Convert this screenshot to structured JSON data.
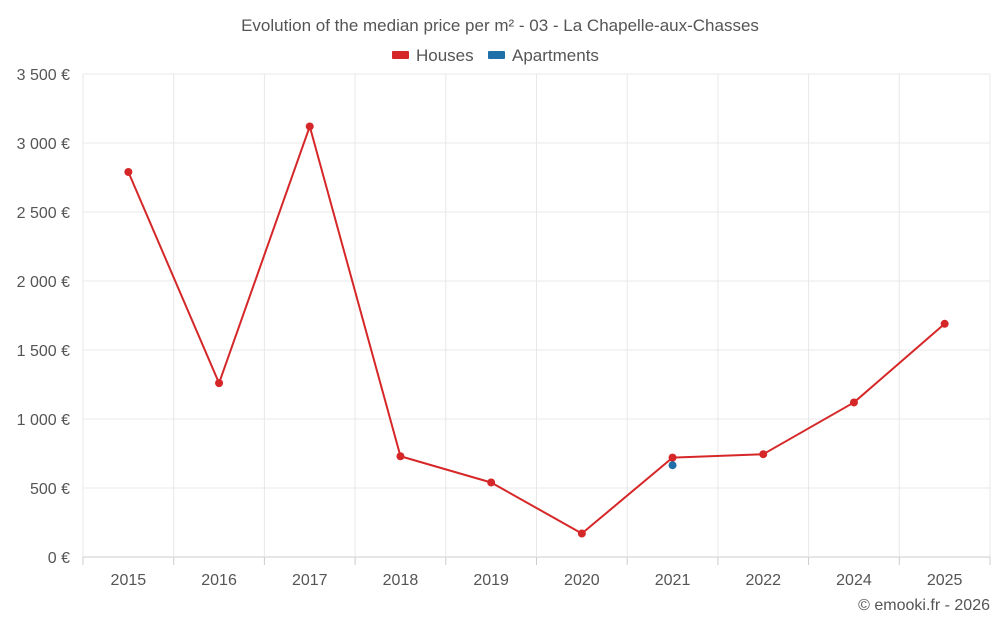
{
  "chart_data": {
    "type": "line",
    "title": "Evolution of the median price per m² - 03 - La Chapelle-aux-Chasses",
    "categories": [
      "2015",
      "2016",
      "2017",
      "2018",
      "2019",
      "2020",
      "2021",
      "2022",
      "2024",
      "2025"
    ],
    "y_ticks": [
      "0 €",
      "500 €",
      "1 000 €",
      "1 500 €",
      "2 000 €",
      "2 500 €",
      "3 000 €",
      "3 500 €"
    ],
    "ylim": [
      0,
      3500
    ],
    "grid": true,
    "legend_position": "top-center",
    "series": [
      {
        "name": "Houses",
        "color": "#d62728",
        "values": [
          2790,
          1260,
          3120,
          730,
          540,
          170,
          720,
          745,
          1120,
          1690
        ]
      },
      {
        "name": "Apartments",
        "color": "#1f6fa8",
        "values": [
          null,
          null,
          null,
          null,
          null,
          null,
          665,
          null,
          null,
          null
        ]
      }
    ],
    "credit": "© emooki.fr - 2026"
  }
}
